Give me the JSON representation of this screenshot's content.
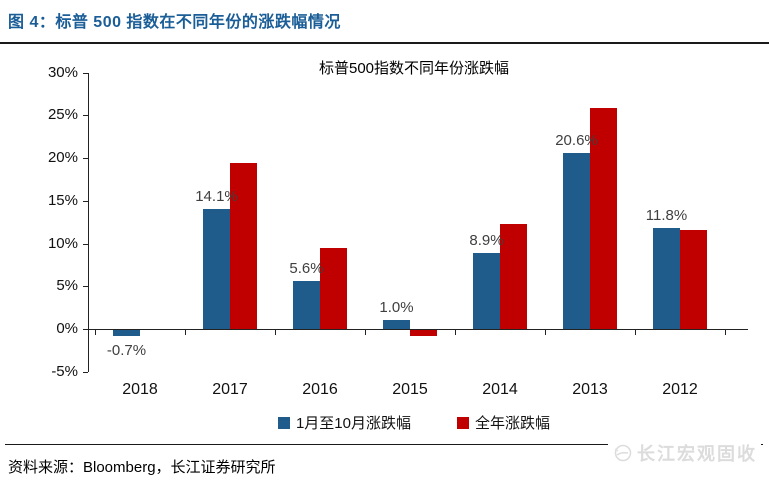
{
  "header": {
    "figure_title": "图 4：标普 500 指数在不同年份的涨跌幅情况"
  },
  "chart_data": {
    "type": "bar",
    "title": "标普500指数不同年份涨跌幅",
    "categories": [
      "2018",
      "2017",
      "2016",
      "2015",
      "2014",
      "2013",
      "2012"
    ],
    "series": [
      {
        "name": "1月至10月涨跌幅",
        "color": "#1F5C8C",
        "values": [
          -0.7,
          14.1,
          5.6,
          1.0,
          8.9,
          20.6,
          11.8
        ],
        "data_labels": [
          "-0.7%",
          "14.1%",
          "5.6%",
          "1.0%",
          "8.9%",
          "20.6%",
          "11.8%"
        ]
      },
      {
        "name": "全年涨跌幅",
        "color": "#C00000",
        "values": [
          null,
          19.4,
          9.5,
          -0.7,
          12.3,
          25.9,
          11.6
        ],
        "data_labels": [
          null,
          null,
          null,
          null,
          null,
          null,
          null
        ]
      }
    ],
    "ylim": [
      -5,
      30
    ],
    "ytick_values": [
      30,
      25,
      20,
      15,
      10,
      5,
      0,
      -5
    ],
    "ytick_labels": [
      "30%",
      "25%",
      "20%",
      "15%",
      "10%",
      "5%",
      "0%",
      "-5%"
    ],
    "grid": false,
    "legend_position": "bottom"
  },
  "footer": {
    "source": "资料来源：Bloomberg，长江证券研究所",
    "watermark": "长江宏观固收"
  }
}
